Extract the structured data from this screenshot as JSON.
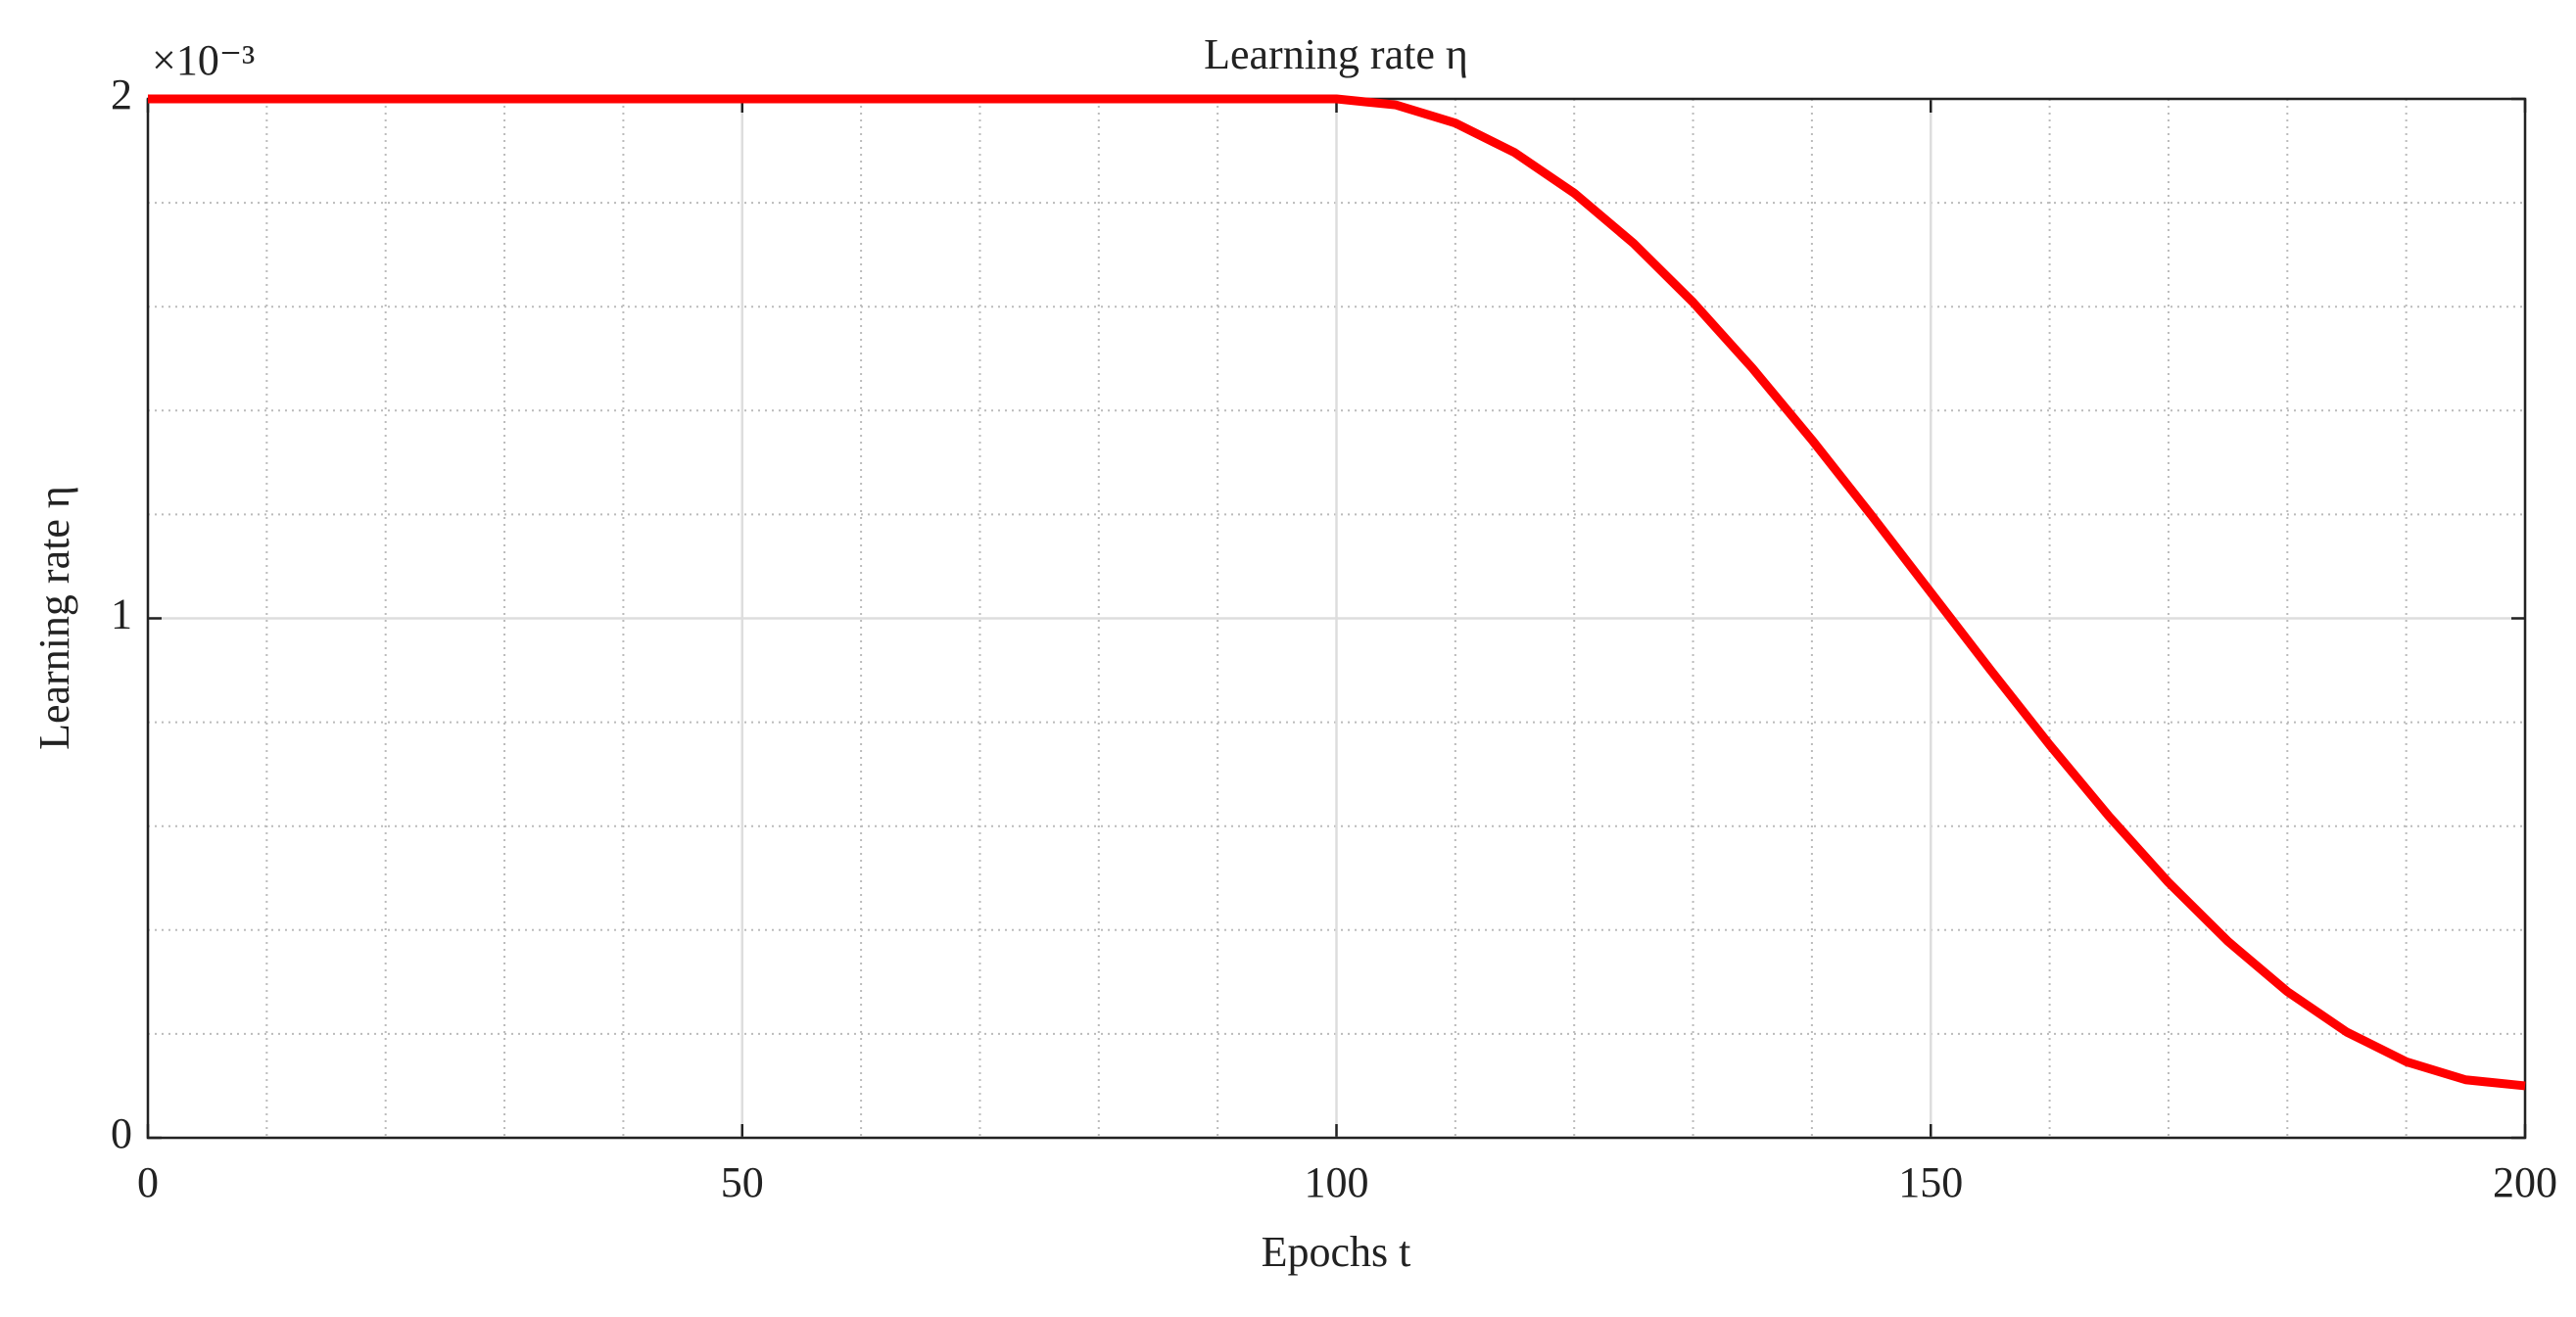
{
  "chart_data": {
    "type": "line",
    "title": "Learning rate η",
    "x_label": "Epochs t",
    "y_label": "Learning rate η",
    "y_exponent_label": "×10⁻³",
    "x": [
      0,
      5,
      10,
      15,
      20,
      25,
      30,
      35,
      40,
      45,
      50,
      55,
      60,
      65,
      70,
      75,
      80,
      85,
      90,
      95,
      100,
      105,
      110,
      115,
      120,
      125,
      130,
      135,
      140,
      145,
      150,
      155,
      160,
      165,
      170,
      175,
      180,
      185,
      190,
      195,
      200
    ],
    "series": [
      {
        "name": "Learning rate",
        "color": "#ff0000",
        "values": [
          2,
          2,
          2,
          2,
          2,
          2,
          2,
          2,
          2,
          2,
          2,
          2,
          2,
          2,
          2,
          2,
          2,
          2,
          2,
          2,
          2,
          1.9883,
          1.9535,
          1.8965,
          1.8186,
          1.7218,
          1.6084,
          1.4813,
          1.3436,
          1.1986,
          1.05,
          0.9014,
          0.7564,
          0.6187,
          0.4916,
          0.3782,
          0.2814,
          0.2035,
          0.1465,
          0.1117,
          0.1
        ]
      }
    ],
    "xlim": [
      0,
      200
    ],
    "xticks": [
      0,
      50,
      100,
      150,
      200
    ],
    "ylim": [
      0,
      2
    ],
    "yticks": [
      0,
      1,
      2
    ],
    "xminorticks": [
      10,
      20,
      30,
      40,
      60,
      70,
      80,
      90,
      110,
      120,
      130,
      140,
      160,
      170,
      180,
      190
    ],
    "yminorticks": [
      0.2,
      0.4,
      0.6,
      0.8,
      1.2,
      1.4,
      1.6,
      1.8
    ],
    "grid": true,
    "minor_grid": true
  }
}
